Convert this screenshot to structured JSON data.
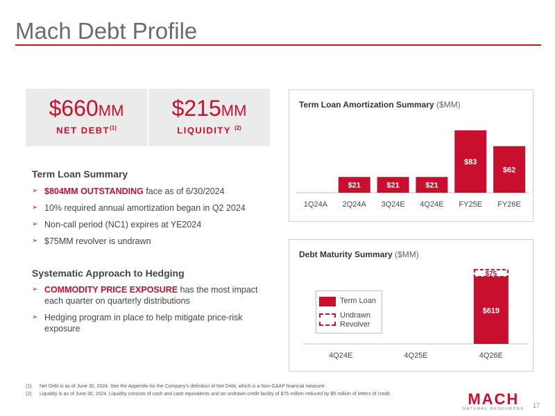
{
  "page": {
    "title": "Mach Debt Profile",
    "page_number": "17"
  },
  "stats": {
    "net_debt": {
      "value": "$660",
      "unit": "MM",
      "label": "NET DEBT",
      "footnote": "(1)"
    },
    "liquidity": {
      "value": "$215",
      "unit": "MM",
      "label": "LIQUIDITY",
      "footnote": "(2)"
    }
  },
  "term_loan_summary": {
    "heading": "Term Loan Summary",
    "bullets": [
      {
        "highlight": "$804MM OUTSTANDING",
        "text": " face as of 6/30/2024"
      },
      {
        "highlight": "",
        "text": "10% required annual amortization began in Q2 2024"
      },
      {
        "highlight": "",
        "text": "Non-call period (NC1) expires at YE2024"
      },
      {
        "highlight": "",
        "text": "$75MM revolver is undrawn"
      }
    ]
  },
  "hedging": {
    "heading": "Systematic Approach to Hedging",
    "bullets": [
      {
        "highlight": "COMMODITY PRICE EXPOSURE",
        "text": " has the most impact each quarter on quarterly distributions"
      },
      {
        "highlight": "",
        "text": "Hedging program in place to help mitigate price-risk exposure"
      }
    ]
  },
  "bullet_marker": "➢",
  "chart_data": [
    {
      "type": "bar",
      "title": "Term Loan Amortization Summary",
      "unit_label": "($MM)",
      "categories": [
        "1Q24A",
        "2Q24A",
        "3Q24E",
        "4Q24E",
        "FY25E",
        "FY26E"
      ],
      "values": [
        0,
        21,
        21,
        21,
        83,
        62
      ],
      "data_labels": [
        "",
        "$21",
        "$21",
        "$21",
        "$83",
        "$62"
      ],
      "color": "#c8102e"
    },
    {
      "type": "bar",
      "title": "Debt Maturity Summary",
      "unit_label": "($MM)",
      "categories": [
        "4Q24E",
        "4Q25E",
        "4Q26E"
      ],
      "series": [
        {
          "name": "Term Loan",
          "values": [
            0,
            0,
            619
          ],
          "data_labels": [
            "",
            "",
            "$619"
          ],
          "style": "solid"
        },
        {
          "name": "Undrawn Revolver",
          "values": [
            0,
            0,
            75
          ],
          "data_labels": [
            "",
            "",
            "$75"
          ],
          "style": "dashed"
        }
      ],
      "legend": {
        "term_loan": "Term Loan",
        "revolver_line1": "Undrawn",
        "revolver_line2": "Revolver"
      },
      "color": "#c8102e"
    }
  ],
  "footnotes": [
    {
      "num": "(1)",
      "text": "Net Debt is as of June 30, 2024. See the Appendix for the Company's definition of Net Debt, which is a Non-GAAP financial measure."
    },
    {
      "num": "(2)",
      "text": "Liquidity is as of June 30, 2024. Liquidity consists of cash and cash equivalents and an undrawn credit facility of $75 million reduced by $5 million of letters of credit."
    }
  ],
  "logo": {
    "main": "MACH",
    "sub": "NATURAL RESOURCES"
  }
}
